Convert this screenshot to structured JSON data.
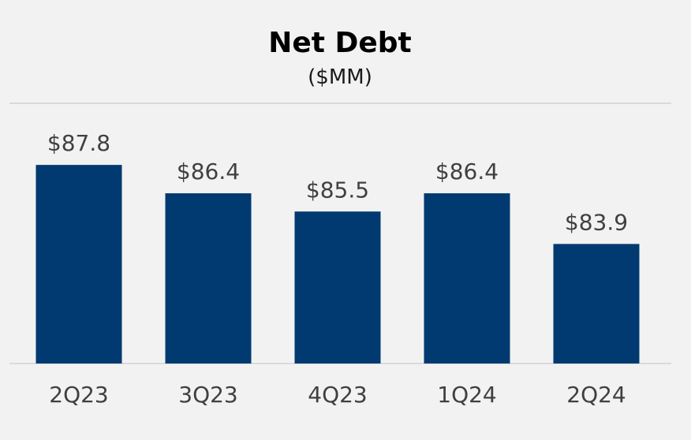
{
  "chart_data": {
    "type": "bar",
    "title": "Net Debt",
    "subtitle": "($MM)",
    "categories": [
      "2Q23",
      "3Q23",
      "4Q23",
      "1Q24",
      "2Q24"
    ],
    "values": [
      87.8,
      86.4,
      85.5,
      86.4,
      83.9
    ],
    "data_labels": [
      "$87.8",
      "$86.4",
      "$85.5",
      "$86.4",
      "$83.9"
    ],
    "ylim": [
      78.0,
      90.5
    ],
    "grid": false,
    "colors": {
      "bar": "#003a70",
      "background": "#f2f2f2",
      "rule": "#cccccc"
    }
  }
}
